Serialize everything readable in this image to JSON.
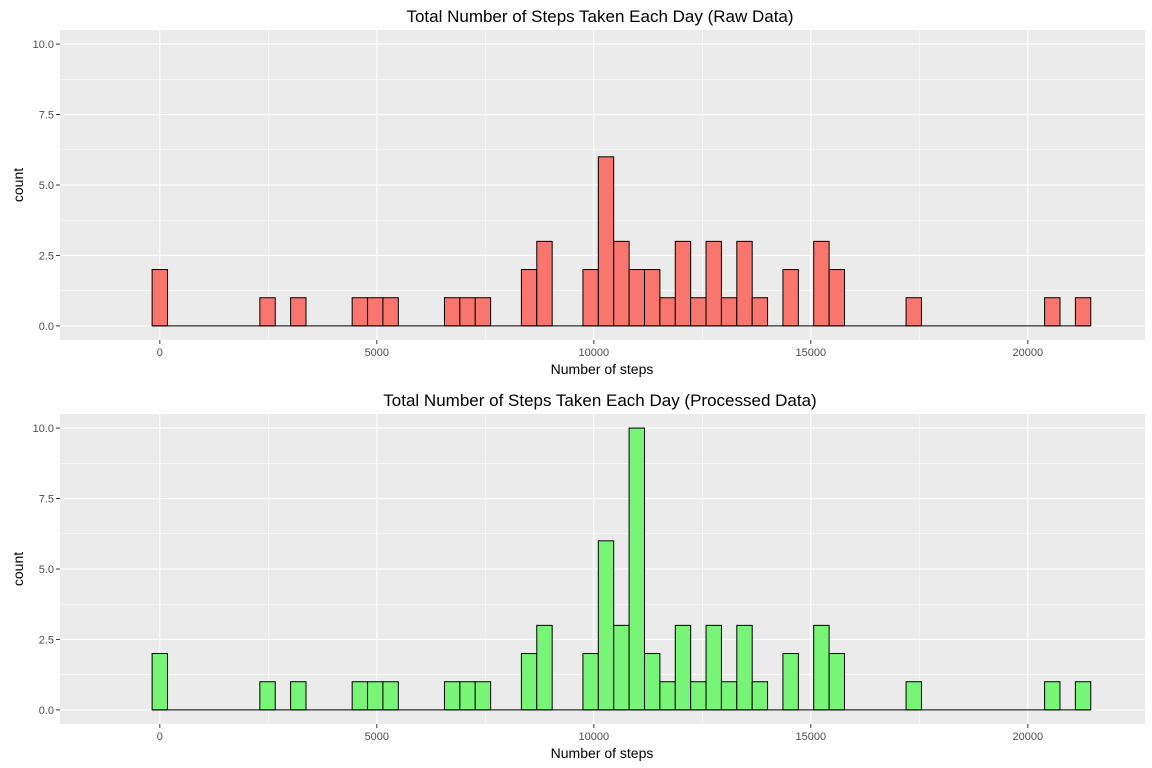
{
  "chart_data": [
    {
      "type": "bar",
      "title": "Total Number of Steps Taken Each Day (Raw Data)",
      "xlabel": "Number of steps",
      "ylabel": "count",
      "fill_color": "#f8766d",
      "bin_width": 354.6,
      "x_ticks": [
        0,
        5000,
        10000,
        15000,
        20000
      ],
      "y_ticks": [
        0.0,
        2.5,
        5.0,
        7.5,
        10.0
      ],
      "y_tick_labels": [
        "0.0",
        "2.5",
        "5.0",
        "7.5",
        "10.0"
      ],
      "x_tick_labels": [
        "0",
        "5000",
        "10000",
        "15000",
        "20000"
      ],
      "xlim": [
        -2300,
        22700
      ],
      "ylim": [
        -0.5,
        10.5
      ],
      "grid": true,
      "x": [
        0,
        2482,
        3191,
        4609,
        4964,
        5318,
        6736,
        7091,
        7445,
        8509,
        8863,
        9927,
        10281,
        10636,
        10990,
        11345,
        11700,
        12054,
        12408,
        12763,
        13117,
        13472,
        13826,
        14535,
        15244,
        15599,
        17372,
        20564,
        21273
      ],
      "values": [
        2,
        1,
        1,
        1,
        1,
        1,
        1,
        1,
        1,
        2,
        3,
        2,
        6,
        3,
        2,
        2,
        1,
        3,
        1,
        3,
        1,
        3,
        1,
        2,
        3,
        2,
        1,
        1,
        1
      ]
    },
    {
      "type": "bar",
      "title": "Total Number of Steps Taken Each Day (Processed Data)",
      "xlabel": "Number of steps",
      "ylabel": "count",
      "fill_color": "#78f577",
      "bin_width": 354.6,
      "x_ticks": [
        0,
        5000,
        10000,
        15000,
        20000
      ],
      "y_ticks": [
        0.0,
        2.5,
        5.0,
        7.5,
        10.0
      ],
      "y_tick_labels": [
        "0.0",
        "2.5",
        "5.0",
        "7.5",
        "10.0"
      ],
      "x_tick_labels": [
        "0",
        "5000",
        "10000",
        "15000",
        "20000"
      ],
      "xlim": [
        -2300,
        22700
      ],
      "ylim": [
        -0.5,
        10.5
      ],
      "grid": true,
      "x": [
        0,
        2482,
        3191,
        4609,
        4964,
        5318,
        6736,
        7091,
        7445,
        8509,
        8863,
        9927,
        10281,
        10636,
        10990,
        11345,
        11700,
        12054,
        12408,
        12763,
        13117,
        13472,
        13826,
        14535,
        15244,
        15599,
        17372,
        20564,
        21273
      ],
      "values": [
        2,
        1,
        1,
        1,
        1,
        1,
        1,
        1,
        1,
        2,
        3,
        2,
        6,
        3,
        10,
        2,
        1,
        3,
        1,
        3,
        1,
        3,
        1,
        2,
        3,
        2,
        1,
        1,
        1
      ]
    }
  ]
}
